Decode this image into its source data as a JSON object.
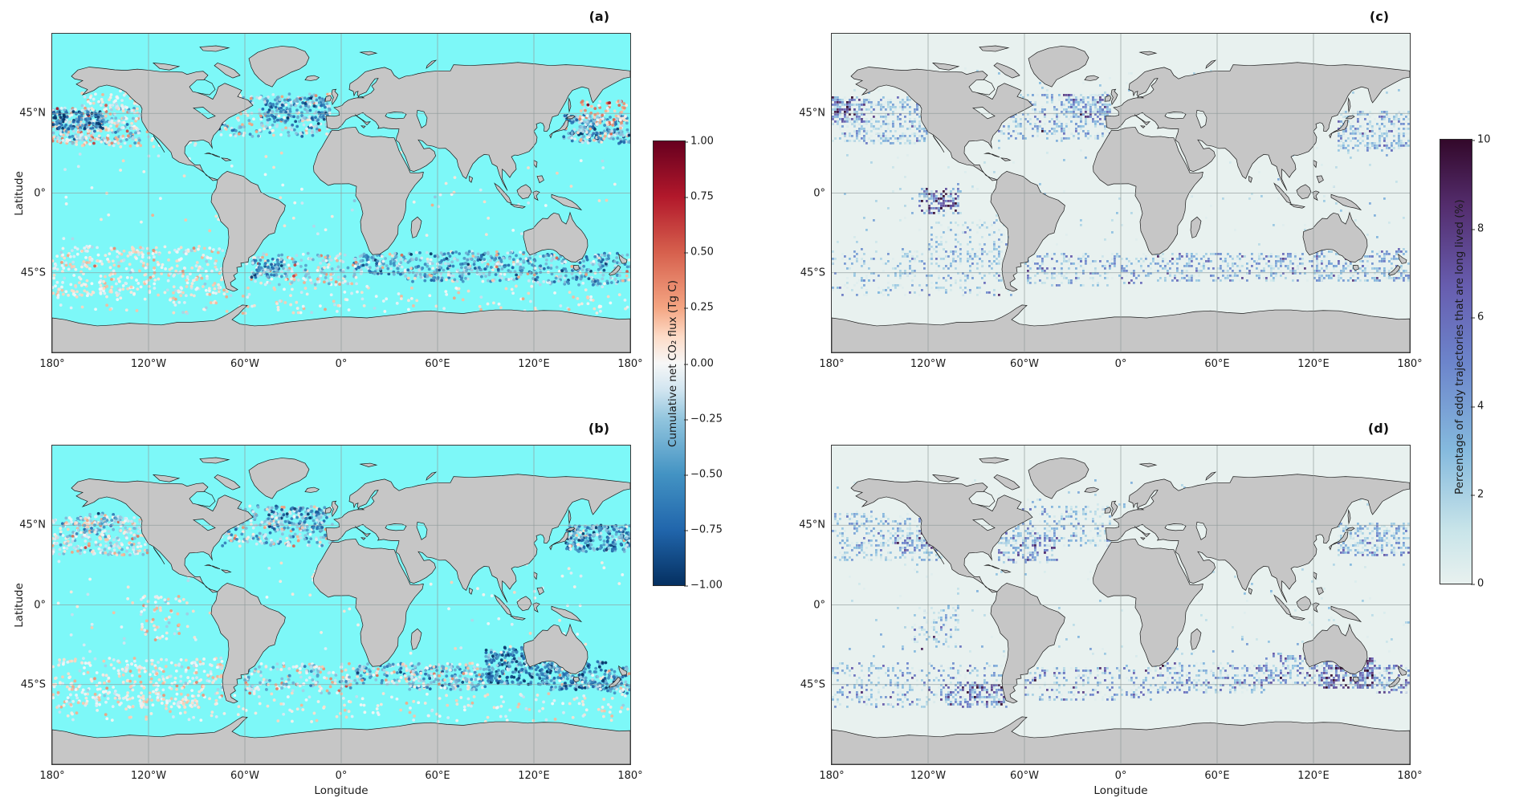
{
  "figure": {
    "colors": {
      "background": "#ffffff",
      "land": "#c6c6c6",
      "coast": "#1a1a1a",
      "grid": "#8f9a9a",
      "flux_ocean": "#7df8f8",
      "eddy_ocean": "#e8f1ef",
      "text": "#1a1a1a"
    }
  },
  "axis_labels": {
    "x": "Longitude",
    "y": "Latitude"
  },
  "ticks": {
    "x": [
      "180°",
      "120°W",
      "60°W",
      "0°",
      "60°E",
      "120°E",
      "180°"
    ],
    "y": [
      "45°N",
      "0°",
      "45°S"
    ]
  },
  "colorbars": [
    {
      "id": "flux",
      "label": "Cumulative net CO₂ flux (Tg C)",
      "tick_labels": [
        "1.00",
        "0.75",
        "0.50",
        "0.25",
        "0.00",
        "−0.25",
        "−0.50",
        "−0.75",
        "−1.00"
      ],
      "range": [
        -1,
        1
      ],
      "stops_top_to_bottom": [
        [
          0,
          "#67001f"
        ],
        [
          0.125,
          "#b2182b"
        ],
        [
          0.25,
          "#d6604d"
        ],
        [
          0.375,
          "#f4a582"
        ],
        [
          0.44,
          "#fddbc7"
        ],
        [
          0.5,
          "#f7f7f7"
        ],
        [
          0.56,
          "#d1e5f0"
        ],
        [
          0.625,
          "#92c5de"
        ],
        [
          0.75,
          "#4393c3"
        ],
        [
          0.875,
          "#2166ac"
        ],
        [
          1,
          "#053061"
        ]
      ]
    },
    {
      "id": "eddy",
      "label": "Percentage of eddy trajectories that are long lived (%)",
      "tick_labels": [
        "10",
        "8",
        "6",
        "4",
        "2",
        "0"
      ],
      "range": [
        0,
        10
      ],
      "stops_top_to_bottom": [
        [
          0,
          "#33082a"
        ],
        [
          0.15,
          "#542d6e"
        ],
        [
          0.33,
          "#675daf"
        ],
        [
          0.5,
          "#6c84cb"
        ],
        [
          0.7,
          "#85bade"
        ],
        [
          0.88,
          "#c8e4e9"
        ],
        [
          1,
          "#e8f1ef"
        ]
      ]
    }
  ],
  "chart_data": [
    {
      "id": "a",
      "title": "(a)",
      "type": "scatter",
      "projection": "equirectangular",
      "lon_range": [
        -180,
        180
      ],
      "lat_range": [
        -90,
        90
      ],
      "grid_lons": [
        -120,
        -60,
        0,
        60,
        120
      ],
      "grid_lats": [
        45,
        0,
        -45
      ],
      "ocean_color": "#7df8f8",
      "marker": "circle",
      "colorbar": "flux",
      "value_range": [
        -1,
        1
      ],
      "clusters": [
        {
          "lon": [
            -180,
            -125
          ],
          "lat": [
            28,
            48
          ],
          "n": 300,
          "mean": -0.1,
          "sd": 0.3
        },
        {
          "lon": [
            -180,
            -148
          ],
          "lat": [
            36,
            46
          ],
          "n": 130,
          "mean": -0.65,
          "sd": 0.25
        },
        {
          "lon": [
            -162,
            -122
          ],
          "lat": [
            46,
            58
          ],
          "n": 70,
          "mean": 0.05,
          "sd": 0.15
        },
        {
          "lon": [
            138,
            180
          ],
          "lat": [
            28,
            44
          ],
          "n": 240,
          "mean": -0.35,
          "sd": 0.35
        },
        {
          "lon": [
            148,
            178
          ],
          "lat": [
            38,
            52
          ],
          "n": 80,
          "mean": 0.2,
          "sd": 0.25
        },
        {
          "lon": [
            -76,
            -6
          ],
          "lat": [
            32,
            56
          ],
          "n": 280,
          "mean": -0.15,
          "sd": 0.3
        },
        {
          "lon": [
            -48,
            -8
          ],
          "lat": [
            40,
            54
          ],
          "n": 130,
          "mean": -0.55,
          "sd": 0.25
        },
        {
          "lon": [
            8,
            40
          ],
          "lat": [
            -46,
            -34
          ],
          "n": 110,
          "mean": -0.4,
          "sd": 0.3
        },
        {
          "lon": [
            40,
            120
          ],
          "lat": [
            -50,
            -33
          ],
          "n": 320,
          "mean": -0.35,
          "sd": 0.3
        },
        {
          "lon": [
            120,
            180
          ],
          "lat": [
            -52,
            -34
          ],
          "n": 230,
          "mean": -0.35,
          "sd": 0.3
        },
        {
          "lon": [
            -60,
            10
          ],
          "lat": [
            -52,
            -34
          ],
          "n": 190,
          "mean": -0.1,
          "sd": 0.25
        },
        {
          "lon": [
            -56,
            -36
          ],
          "lat": [
            -48,
            -37
          ],
          "n": 70,
          "mean": -0.5,
          "sd": 0.25
        },
        {
          "lon": [
            -180,
            -68
          ],
          "lat": [
            -58,
            -30
          ],
          "n": 400,
          "mean": 0.05,
          "sd": 0.12
        },
        {
          "lon": [
            -180,
            180
          ],
          "lat": [
            -68,
            -52
          ],
          "n": 190,
          "mean": 0.05,
          "sd": 0.1
        },
        {
          "lon": [
            -180,
            180
          ],
          "lat": [
            -28,
            26
          ],
          "n": 90,
          "mean": 0.02,
          "sd": 0.1
        },
        {
          "lon": [
            -180,
            -90
          ],
          "lat": [
            26,
            36
          ],
          "n": 60,
          "mean": 0.0,
          "sd": 0.15
        }
      ]
    },
    {
      "id": "b",
      "title": "(b)",
      "type": "scatter",
      "projection": "equirectangular",
      "lon_range": [
        -180,
        180
      ],
      "lat_range": [
        -90,
        90
      ],
      "grid_lons": [
        -120,
        -60,
        0,
        60,
        120
      ],
      "grid_lats": [
        45,
        0,
        -45
      ],
      "ocean_color": "#7df8f8",
      "marker": "circle",
      "colorbar": "flux",
      "value_range": [
        -1,
        1
      ],
      "clusters": [
        {
          "lon": [
            -180,
            -120
          ],
          "lat": [
            28,
            50
          ],
          "n": 300,
          "mean": -0.05,
          "sd": 0.2
        },
        {
          "lon": [
            140,
            180
          ],
          "lat": [
            30,
            45
          ],
          "n": 260,
          "mean": -0.5,
          "sd": 0.3
        },
        {
          "lon": [
            -165,
            -140
          ],
          "lat": [
            40,
            52
          ],
          "n": 60,
          "mean": -0.3,
          "sd": 0.3
        },
        {
          "lon": [
            -75,
            -5
          ],
          "lat": [
            33,
            56
          ],
          "n": 290,
          "mean": -0.2,
          "sd": 0.3
        },
        {
          "lon": [
            -45,
            -10
          ],
          "lat": [
            42,
            55
          ],
          "n": 110,
          "mean": -0.5,
          "sd": 0.3
        },
        {
          "lon": [
            90,
            130
          ],
          "lat": [
            -45,
            -24
          ],
          "n": 290,
          "mean": -0.6,
          "sd": 0.3
        },
        {
          "lon": [
            130,
            165
          ],
          "lat": [
            -48,
            -32
          ],
          "n": 220,
          "mean": -0.5,
          "sd": 0.3
        },
        {
          "lon": [
            165,
            180
          ],
          "lat": [
            -50,
            -35
          ],
          "n": 80,
          "mean": -0.35,
          "sd": 0.3
        },
        {
          "lon": [
            40,
            90
          ],
          "lat": [
            -48,
            -33
          ],
          "n": 220,
          "mean": -0.25,
          "sd": 0.3
        },
        {
          "lon": [
            8,
            40
          ],
          "lat": [
            -45,
            -33
          ],
          "n": 90,
          "mean": -0.3,
          "sd": 0.3
        },
        {
          "lon": [
            -60,
            8
          ],
          "lat": [
            -50,
            -33
          ],
          "n": 180,
          "mean": -0.1,
          "sd": 0.25
        },
        {
          "lon": [
            -180,
            -68
          ],
          "lat": [
            -58,
            -30
          ],
          "n": 400,
          "mean": 0.04,
          "sd": 0.12
        },
        {
          "lon": [
            -180,
            180
          ],
          "lat": [
            -66,
            -50
          ],
          "n": 210,
          "mean": 0.05,
          "sd": 0.1
        },
        {
          "lon": [
            -180,
            180
          ],
          "lat": [
            -28,
            26
          ],
          "n": 110,
          "mean": 0.02,
          "sd": 0.1
        },
        {
          "lon": [
            -125,
            -95
          ],
          "lat": [
            -20,
            5
          ],
          "n": 60,
          "mean": 0.05,
          "sd": 0.15
        }
      ]
    },
    {
      "id": "c",
      "title": "(c)",
      "type": "gridded",
      "projection": "equirectangular",
      "lon_range": [
        -180,
        180
      ],
      "lat_range": [
        -90,
        90
      ],
      "grid_lons": [
        -120,
        -60,
        0,
        60,
        120
      ],
      "grid_lats": [
        45,
        0,
        -45
      ],
      "ocean_color": "#e8f1ef",
      "marker": "square",
      "colorbar": "eddy",
      "value_range": [
        0,
        10
      ],
      "clusters": [
        {
          "lon": [
            -180,
            -120
          ],
          "lat": [
            28,
            54
          ],
          "n": 430,
          "mean": 2.2,
          "sd": 1.8
        },
        {
          "lon": [
            -180,
            -160
          ],
          "lat": [
            40,
            54
          ],
          "n": 90,
          "mean": 5.5,
          "sd": 3
        },
        {
          "lon": [
            135,
            180
          ],
          "lat": [
            24,
            46
          ],
          "n": 320,
          "mean": 2.5,
          "sd": 2
        },
        {
          "lon": [
            -76,
            -6
          ],
          "lat": [
            30,
            56
          ],
          "n": 360,
          "mean": 2.5,
          "sd": 2
        },
        {
          "lon": [
            -35,
            -6
          ],
          "lat": [
            40,
            56
          ],
          "n": 140,
          "mean": 3.5,
          "sd": 2.5
        },
        {
          "lon": [
            -125,
            -100
          ],
          "lat": [
            -12,
            2
          ],
          "n": 140,
          "mean": 5.5,
          "sd": 3
        },
        {
          "lon": [
            20,
            120
          ],
          "lat": [
            -50,
            -34
          ],
          "n": 330,
          "mean": 2.8,
          "sd": 2
        },
        {
          "lon": [
            120,
            180
          ],
          "lat": [
            -50,
            -32
          ],
          "n": 270,
          "mean": 2.8,
          "sd": 2
        },
        {
          "lon": [
            -180,
            -68
          ],
          "lat": [
            -58,
            -32
          ],
          "n": 320,
          "mean": 2.2,
          "sd": 1.8
        },
        {
          "lon": [
            -60,
            20
          ],
          "lat": [
            -52,
            -34
          ],
          "n": 230,
          "mean": 2.8,
          "sd": 2
        },
        {
          "lon": [
            -180,
            180
          ],
          "lat": [
            -30,
            26
          ],
          "n": 140,
          "mean": 1.5,
          "sd": 1.2
        },
        {
          "lon": [
            -180,
            180
          ],
          "lat": [
            54,
            70
          ],
          "n": 80,
          "mean": 1.5,
          "sd": 1.5
        },
        {
          "lon": [
            -120,
            -70
          ],
          "lat": [
            -40,
            -15
          ],
          "n": 120,
          "mean": 2,
          "sd": 1.5
        }
      ]
    },
    {
      "id": "d",
      "title": "(d)",
      "type": "gridded",
      "projection": "equirectangular",
      "lon_range": [
        -180,
        180
      ],
      "lat_range": [
        -90,
        90
      ],
      "grid_lons": [
        -120,
        -60,
        0,
        60,
        120
      ],
      "grid_lats": [
        45,
        0,
        -45
      ],
      "ocean_color": "#e8f1ef",
      "marker": "square",
      "colorbar": "eddy",
      "value_range": [
        0,
        10
      ],
      "clusters": [
        {
          "lon": [
            -180,
            -110
          ],
          "lat": [
            25,
            52
          ],
          "n": 360,
          "mean": 2,
          "sd": 1.5
        },
        {
          "lon": [
            -140,
            -105
          ],
          "lat": [
            30,
            42
          ],
          "n": 90,
          "mean": 4.5,
          "sd": 2.5
        },
        {
          "lon": [
            135,
            180
          ],
          "lat": [
            28,
            46
          ],
          "n": 270,
          "mean": 2.5,
          "sd": 2
        },
        {
          "lon": [
            -76,
            -40
          ],
          "lat": [
            24,
            40
          ],
          "n": 160,
          "mean": 4,
          "sd": 2.5
        },
        {
          "lon": [
            -76,
            -6
          ],
          "lat": [
            33,
            56
          ],
          "n": 270,
          "mean": 2.2,
          "sd": 1.8
        },
        {
          "lon": [
            125,
            158
          ],
          "lat": [
            -47,
            -30
          ],
          "n": 280,
          "mean": 6,
          "sd": 2.8
        },
        {
          "lon": [
            90,
            125
          ],
          "lat": [
            -45,
            -28
          ],
          "n": 160,
          "mean": 3.5,
          "sd": 2.5
        },
        {
          "lon": [
            158,
            180
          ],
          "lat": [
            -50,
            -34
          ],
          "n": 100,
          "mean": 3.5,
          "sd": 2.5
        },
        {
          "lon": [
            20,
            90
          ],
          "lat": [
            -50,
            -33
          ],
          "n": 270,
          "mean": 3,
          "sd": 2.2
        },
        {
          "lon": [
            -60,
            20
          ],
          "lat": [
            -54,
            -35
          ],
          "n": 250,
          "mean": 3,
          "sd": 2.5
        },
        {
          "lon": [
            -180,
            -68
          ],
          "lat": [
            -58,
            -33
          ],
          "n": 370,
          "mean": 2.8,
          "sd": 2.2
        },
        {
          "lon": [
            -112,
            -72
          ],
          "lat": [
            -56,
            -44
          ],
          "n": 130,
          "mean": 5,
          "sd": 3
        },
        {
          "lon": [
            -180,
            180
          ],
          "lat": [
            -30,
            26
          ],
          "n": 150,
          "mean": 1.5,
          "sd": 1.2
        },
        {
          "lon": [
            -130,
            -100
          ],
          "lat": [
            -25,
            0
          ],
          "n": 90,
          "mean": 2.5,
          "sd": 2
        },
        {
          "lon": [
            -180,
            180
          ],
          "lat": [
            54,
            70
          ],
          "n": 70,
          "mean": 1.5,
          "sd": 1.5
        }
      ]
    }
  ]
}
